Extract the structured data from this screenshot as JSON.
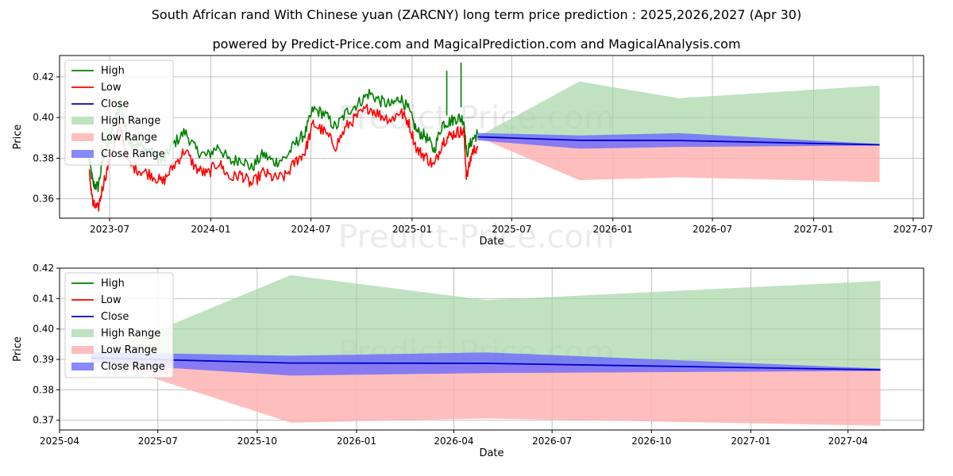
{
  "title": "South African rand With Chinese yuan (ZARCNY) long term price prediction : 2025,2026,2027 (Apr 30)",
  "subtitle": "powered by Predict-Price.com and MagicalPrediction.com and MagicalAnalysis.com",
  "watermark": "Predict-Price.com",
  "colors": {
    "high": "#008000",
    "low": "#ff0000",
    "close": "#0000cc",
    "high_range": "#a5d6a7",
    "low_range": "#ffb3b3",
    "close_range": "#6a6aff",
    "grid": "#b0b0b0"
  },
  "chart_data": [
    {
      "type": "line",
      "panel": "top",
      "xlabel": "Date",
      "ylabel": "Price",
      "xlim": [
        "2023-04-01",
        "2027-07-20"
      ],
      "ylim": [
        0.3505,
        0.4305
      ],
      "x_ticks": [
        "2023-07",
        "2024-01",
        "2024-07",
        "2025-01",
        "2025-07",
        "2026-01",
        "2026-07",
        "2027-01",
        "2027-07"
      ],
      "y_ticks": [
        0.36,
        0.38,
        0.4,
        0.42
      ],
      "grid": true,
      "legend_position": "top-left",
      "legend": [
        "High",
        "Low",
        "Close",
        "High Range",
        "Low Range",
        "Close Range"
      ],
      "history": {
        "x": [
          "2023-05-25",
          "2023-06-01",
          "2023-06-10",
          "2023-06-20",
          "2023-07-05",
          "2023-07-20",
          "2023-08-05",
          "2023-08-25",
          "2023-09-15",
          "2023-10-05",
          "2023-10-25",
          "2023-11-15",
          "2023-12-05",
          "2023-12-25",
          "2024-01-15",
          "2024-02-05",
          "2024-02-25",
          "2024-03-15",
          "2024-04-05",
          "2024-04-25",
          "2024-05-15",
          "2024-06-05",
          "2024-06-20",
          "2024-07-05",
          "2024-07-25",
          "2024-08-15",
          "2024-09-05",
          "2024-09-25",
          "2024-10-15",
          "2024-11-05",
          "2024-11-25",
          "2024-12-10",
          "2024-12-25",
          "2025-01-10",
          "2025-01-25",
          "2025-02-10",
          "2025-02-25",
          "2025-03-10",
          "2025-03-25",
          "2025-04-05",
          "2025-04-10",
          "2025-04-20",
          "2025-04-30"
        ],
        "high": [
          0.379,
          0.367,
          0.366,
          0.381,
          0.393,
          0.407,
          0.389,
          0.386,
          0.383,
          0.378,
          0.387,
          0.393,
          0.384,
          0.381,
          0.386,
          0.378,
          0.38,
          0.375,
          0.382,
          0.378,
          0.38,
          0.388,
          0.392,
          0.404,
          0.402,
          0.395,
          0.403,
          0.407,
          0.412,
          0.408,
          0.406,
          0.41,
          0.404,
          0.393,
          0.391,
          0.384,
          0.397,
          0.398,
          0.4,
          0.399,
          0.382,
          0.389,
          0.392
        ],
        "low": [
          0.373,
          0.357,
          0.355,
          0.368,
          0.383,
          0.396,
          0.377,
          0.374,
          0.372,
          0.368,
          0.376,
          0.384,
          0.375,
          0.372,
          0.378,
          0.37,
          0.372,
          0.367,
          0.373,
          0.37,
          0.371,
          0.379,
          0.383,
          0.397,
          0.393,
          0.386,
          0.396,
          0.401,
          0.405,
          0.401,
          0.399,
          0.403,
          0.398,
          0.384,
          0.381,
          0.376,
          0.388,
          0.391,
          0.393,
          0.393,
          0.37,
          0.383,
          0.386
        ]
      },
      "spikes": [
        {
          "x": "2025-03-05",
          "high": 0.423
        },
        {
          "x": "2025-03-31",
          "high": 0.427
        }
      ],
      "forecast": {
        "x": [
          "2025-04-30",
          "2025-11-01",
          "2026-05-01",
          "2027-05-01"
        ],
        "close": [
          0.3905,
          0.3888,
          0.3887,
          0.3866
        ],
        "high_range": {
          "upper": [
            0.3905,
            0.4177,
            0.4095,
            0.4158
          ],
          "lower": [
            0.3905,
            0.3888,
            0.3887,
            0.3866
          ]
        },
        "low_range": {
          "upper": [
            0.3905,
            0.3888,
            0.3887,
            0.3866
          ],
          "lower": [
            0.3905,
            0.3692,
            0.3706,
            0.3682
          ]
        },
        "close_range": {
          "upper": [
            0.3924,
            0.3912,
            0.3923,
            0.387
          ],
          "lower": [
            0.3888,
            0.3847,
            0.3855,
            0.3862
          ]
        }
      }
    },
    {
      "type": "area",
      "panel": "bottom",
      "xlabel": "Date",
      "ylabel": "Price",
      "xlim": [
        "2025-04-01",
        "2027-06-10"
      ],
      "ylim": [
        0.3668,
        0.42
      ],
      "x_ticks": [
        "2025-04",
        "2025-07",
        "2025-10",
        "2026-01",
        "2026-04",
        "2026-07",
        "2026-10",
        "2027-01",
        "2027-04"
      ],
      "y_ticks": [
        0.37,
        0.38,
        0.39,
        0.4,
        0.41,
        0.42
      ],
      "grid": true,
      "legend_position": "top-left",
      "legend": [
        "High",
        "Low",
        "Close",
        "High Range",
        "Low Range",
        "Close Range"
      ],
      "forecast": {
        "x": [
          "2025-04-30",
          "2025-11-01",
          "2026-05-01",
          "2027-05-01"
        ],
        "close": [
          0.3905,
          0.3888,
          0.3887,
          0.3866
        ],
        "high_range": {
          "upper": [
            0.3905,
            0.4177,
            0.4095,
            0.4158
          ],
          "lower": [
            0.3905,
            0.3888,
            0.3887,
            0.3866
          ]
        },
        "low_range": {
          "upper": [
            0.3905,
            0.3888,
            0.3887,
            0.3866
          ],
          "lower": [
            0.3905,
            0.3692,
            0.3706,
            0.3682
          ]
        },
        "close_range": {
          "upper": [
            0.3924,
            0.3912,
            0.3923,
            0.387
          ],
          "lower": [
            0.3888,
            0.3847,
            0.3855,
            0.3862
          ]
        }
      }
    }
  ]
}
